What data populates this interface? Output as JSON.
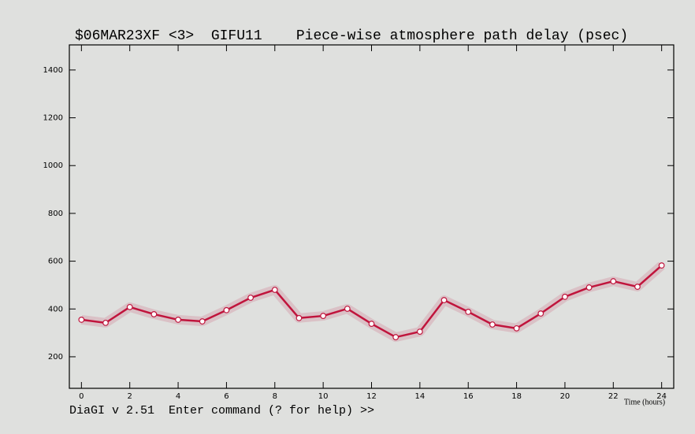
{
  "chart_data": {
    "type": "line",
    "title": "$06MAR23XF <3>  GIFU11    Piece-wise atmosphere path delay (psec)",
    "x_label": "Time (hours)",
    "prompt": "DiaGI v 2.51  Enter command (? for help) >>",
    "x": [
      0,
      1,
      2,
      3,
      4,
      5,
      6,
      7,
      8,
      9,
      10,
      11,
      12,
      13,
      14,
      15,
      16,
      17,
      18,
      19,
      20,
      21,
      22,
      23,
      24
    ],
    "series": [
      {
        "color": "#c0143c",
        "values": [
          355,
          342,
          408,
          378,
          355,
          348,
          395,
          447,
          480,
          362,
          371,
          401,
          338,
          282,
          305,
          437,
          388,
          335,
          319,
          381,
          451,
          490,
          516,
          493,
          582
        ]
      }
    ],
    "xlim": [
      -0.5,
      24.5
    ],
    "xticks": [
      0,
      2,
      4,
      6,
      8,
      10,
      12,
      14,
      16,
      18,
      20,
      22,
      24
    ],
    "ylim": [
      68,
      1505
    ],
    "yticks": [
      200,
      400,
      600,
      800,
      1000,
      1200,
      1400
    ]
  }
}
